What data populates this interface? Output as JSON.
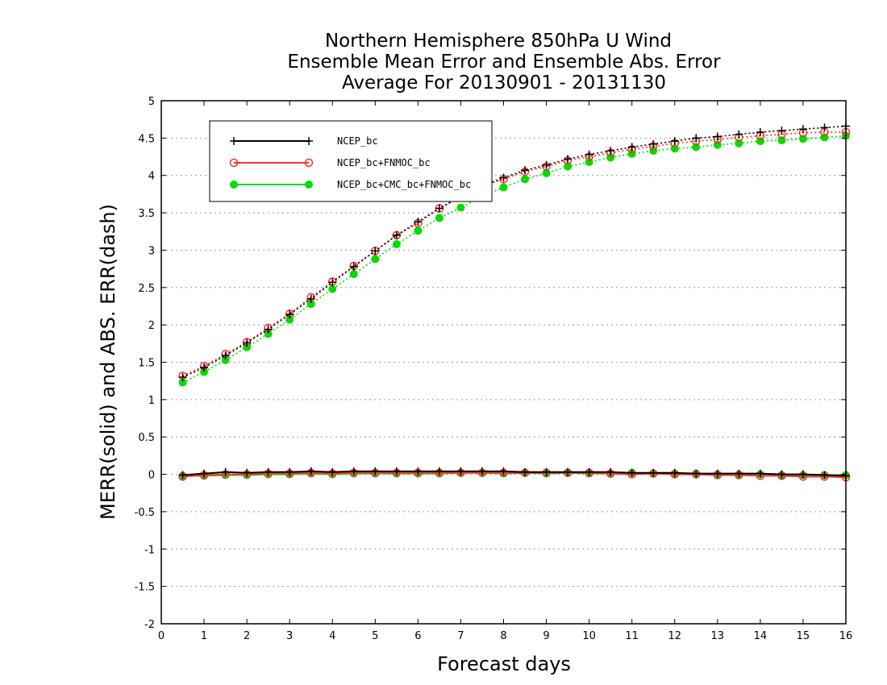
{
  "chart_data": {
    "type": "line",
    "title_lines": [
      "Northern Hemisphere 850hPa U Wind",
      "Ensemble Mean Error and Ensemble Abs. Error",
      "Average For 20130901 - 20131130"
    ],
    "xlabel": "Forecast days",
    "ylabel": "MERR(solid) and ABS. ERR(dash)",
    "xlim": [
      0,
      16
    ],
    "ylim": [
      -2,
      5
    ],
    "x_ticks": [
      "0",
      "1",
      "2",
      "3",
      "4",
      "5",
      "6",
      "7",
      "8",
      "9",
      "10",
      "11",
      "12",
      "13",
      "14",
      "15",
      "16"
    ],
    "y_ticks": [
      "-2",
      "-1.5",
      "-1",
      "-0.5",
      "0",
      "0.5",
      "1",
      "1.5",
      "2",
      "2.5",
      "3",
      "3.5",
      "4",
      "4.5",
      "5"
    ],
    "grid": "horizontal dotted",
    "legend_position": "top-left",
    "x": [
      0.5,
      1,
      1.5,
      2,
      2.5,
      3,
      3.5,
      4,
      4.5,
      5,
      5.5,
      6,
      6.5,
      7,
      7.5,
      8,
      8.5,
      9,
      9.5,
      10,
      10.5,
      11,
      11.5,
      12,
      12.5,
      13,
      13.5,
      14,
      14.5,
      15,
      15.5,
      16
    ],
    "series": [
      {
        "name": "NCEP_bc",
        "color": "#000000",
        "marker": "plus",
        "abs_err": [
          1.3,
          1.43,
          1.59,
          1.76,
          1.94,
          2.14,
          2.35,
          2.57,
          2.78,
          2.99,
          3.2,
          3.38,
          3.56,
          3.72,
          3.86,
          3.97,
          4.07,
          4.14,
          4.22,
          4.28,
          4.33,
          4.38,
          4.42,
          4.46,
          4.5,
          4.52,
          4.55,
          4.58,
          4.6,
          4.62,
          4.64,
          4.66
        ],
        "mean_err": [
          -0.01,
          0.01,
          0.03,
          0.02,
          0.03,
          0.03,
          0.04,
          0.03,
          0.04,
          0.04,
          0.04,
          0.04,
          0.04,
          0.04,
          0.04,
          0.04,
          0.03,
          0.03,
          0.03,
          0.03,
          0.03,
          0.02,
          0.02,
          0.02,
          0.01,
          0.01,
          0.01,
          0.01,
          0.0,
          0.0,
          -0.01,
          -0.02
        ]
      },
      {
        "name": "NCEP_bc+FNMOC_bc",
        "color": "#ff3030",
        "marker": "open-circle",
        "abs_err": [
          1.32,
          1.45,
          1.61,
          1.77,
          1.96,
          2.15,
          2.37,
          2.58,
          2.79,
          2.99,
          3.2,
          3.36,
          3.56,
          3.71,
          3.85,
          3.95,
          4.05,
          4.12,
          4.2,
          4.25,
          4.3,
          4.35,
          4.39,
          4.43,
          4.46,
          4.48,
          4.51,
          4.53,
          4.55,
          4.57,
          4.58,
          4.58
        ],
        "mean_err": [
          -0.03,
          -0.01,
          0.0,
          0.0,
          0.01,
          0.01,
          0.02,
          0.01,
          0.02,
          0.02,
          0.02,
          0.02,
          0.02,
          0.02,
          0.02,
          0.02,
          0.02,
          0.02,
          0.02,
          0.02,
          0.01,
          0.0,
          0.01,
          0.0,
          0.0,
          -0.01,
          -0.01,
          -0.02,
          -0.02,
          -0.03,
          -0.03,
          -0.04
        ]
      },
      {
        "name": "NCEP_bc+CMC_bc+FNMOC_bc",
        "color": "#00dd00",
        "marker": "filled-circle",
        "abs_err": [
          1.23,
          1.37,
          1.53,
          1.7,
          1.88,
          2.07,
          2.28,
          2.48,
          2.68,
          2.88,
          3.08,
          3.26,
          3.43,
          3.57,
          3.72,
          3.84,
          3.95,
          4.03,
          4.12,
          4.18,
          4.24,
          4.29,
          4.33,
          4.36,
          4.38,
          4.41,
          4.43,
          4.46,
          4.47,
          4.49,
          4.51,
          4.53
        ],
        "mean_err": [
          -0.02,
          -0.02,
          -0.01,
          -0.01,
          0.0,
          0.0,
          0.01,
          0.0,
          0.01,
          0.01,
          0.01,
          0.01,
          0.01,
          0.02,
          0.02,
          0.01,
          0.02,
          0.01,
          0.02,
          0.01,
          0.01,
          0.02,
          0.01,
          0.01,
          0.01,
          0.0,
          0.0,
          0.0,
          -0.01,
          -0.01,
          -0.01,
          -0.01
        ]
      }
    ]
  }
}
